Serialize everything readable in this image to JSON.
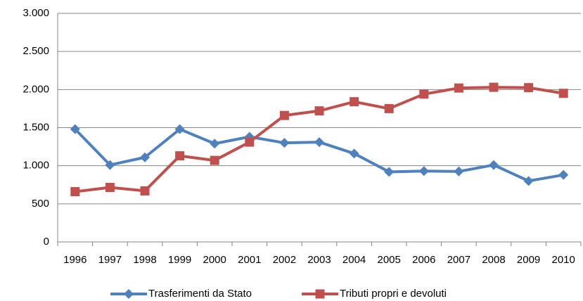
{
  "chart_data": {
    "type": "line",
    "categories": [
      "1996",
      "1997",
      "1998",
      "1999",
      "2000",
      "2001",
      "2002",
      "2003",
      "2004",
      "2005",
      "2006",
      "2007",
      "2008",
      "2009",
      "2010"
    ],
    "series": [
      {
        "name": "Trasferimenti da Stato",
        "color": "#4f81bd",
        "marker": "diamond",
        "values": [
          1480,
          1010,
          1110,
          1480,
          1290,
          1380,
          1300,
          1310,
          1160,
          920,
          930,
          925,
          1010,
          800,
          880
        ]
      },
      {
        "name": "Tributi propri e devoluti",
        "color": "#c0504d",
        "marker": "square",
        "values": [
          660,
          715,
          670,
          1130,
          1070,
          1310,
          1660,
          1720,
          1840,
          1750,
          1940,
          2020,
          2030,
          2025,
          1950
        ]
      }
    ],
    "ylim": [
      0,
      3000
    ],
    "yticks": [
      0,
      500,
      {
        "value": 1000,
        "label": "1.000"
      },
      {
        "value": 1500,
        "label": "1.500"
      },
      {
        "value": 2000,
        "label": "2.000"
      },
      {
        "value": 2500,
        "label": "2.500"
      },
      {
        "value": 3000,
        "label": "3.000"
      }
    ],
    "grid": true,
    "legend": "bottom"
  }
}
